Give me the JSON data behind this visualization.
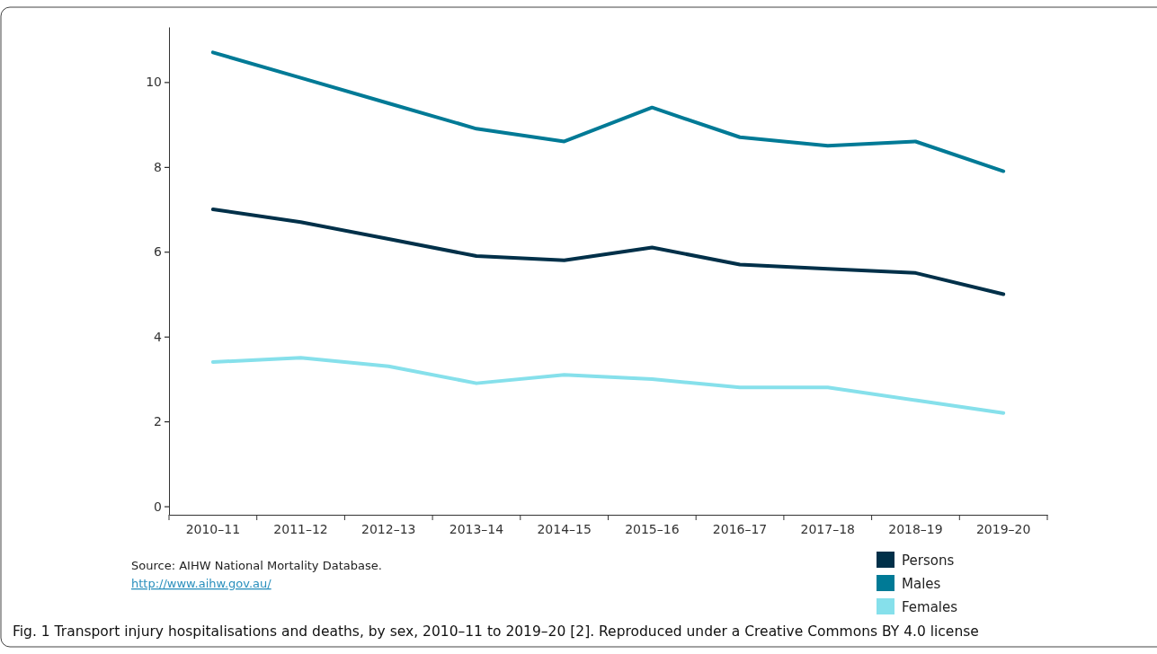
{
  "chart_data": {
    "type": "line",
    "title": "Fig. 1  Transport injury hospitalisations and deaths, by sex, 2010–11 to 2019–20 [2]. Reproduced under a Creative Commons BY 4.0 license",
    "categories": [
      "2010–11",
      "2011–12",
      "2012–13",
      "2013–14",
      "2014–15",
      "2015–16",
      "2016–17",
      "2017–18",
      "2018–19",
      "2019–20"
    ],
    "series": [
      {
        "name": "Persons",
        "color": "#003049",
        "values": [
          7.0,
          6.7,
          6.3,
          5.9,
          5.8,
          6.1,
          5.7,
          5.6,
          5.5,
          5.0
        ]
      },
      {
        "name": "Males",
        "color": "#007a96",
        "values": [
          10.7,
          10.1,
          9.5,
          8.9,
          8.6,
          9.4,
          8.7,
          8.5,
          8.6,
          7.9
        ]
      },
      {
        "name": "Females",
        "color": "#86e0eb",
        "values": [
          3.4,
          3.5,
          3.3,
          2.9,
          3.1,
          3.0,
          2.8,
          2.8,
          2.5,
          2.2
        ]
      }
    ],
    "ylim": [
      -0.2,
      11.3
    ],
    "yticks": [
      0,
      2,
      4,
      6,
      8,
      10
    ],
    "legend": "bottom right",
    "grid": false,
    "marker": "none",
    "line_style": "solid",
    "annotations": [
      "Source: AIHW National Mortality Database.",
      "http://www.aihw.gov.au/"
    ]
  }
}
